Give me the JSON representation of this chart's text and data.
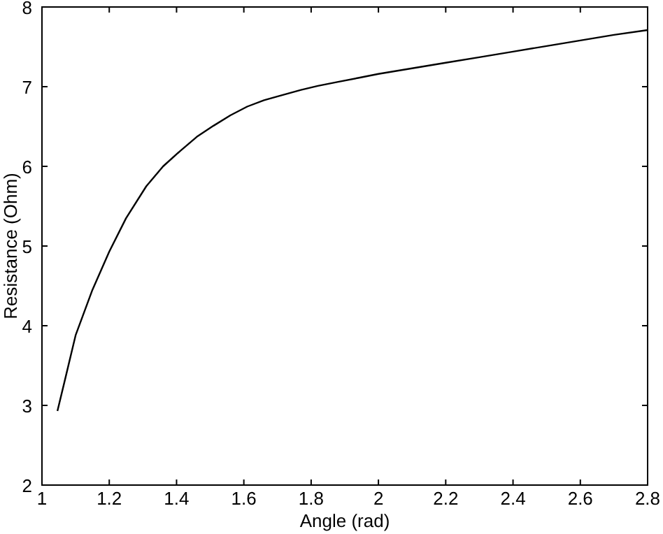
{
  "chart_data": {
    "type": "line",
    "xlabel": "Angle (rad)",
    "ylabel": "Resistance (Ohm)",
    "x": [
      1.046,
      1.07,
      1.1,
      1.15,
      1.2,
      1.25,
      1.31,
      1.36,
      1.41,
      1.46,
      1.51,
      1.56,
      1.61,
      1.66,
      1.71,
      1.77,
      1.82,
      1.88,
      1.94,
      2.0,
      2.1,
      2.2,
      2.3,
      2.4,
      2.5,
      2.6,
      2.7,
      2.8
    ],
    "series": [
      {
        "color": "#000000",
        "values": [
          2.93,
          3.35,
          3.88,
          4.45,
          4.93,
          5.35,
          5.75,
          6.0,
          6.19,
          6.37,
          6.51,
          6.64,
          6.75,
          6.83,
          6.89,
          6.96,
          7.01,
          7.06,
          7.11,
          7.16,
          7.23,
          7.3,
          7.37,
          7.44,
          7.51,
          7.58,
          7.65,
          7.71
        ]
      }
    ],
    "xlim": [
      1,
      2.8
    ],
    "ylim": [
      2,
      8
    ],
    "xticks": [
      1,
      1.2,
      1.4,
      1.6,
      1.8,
      2,
      2.2,
      2.4,
      2.6,
      2.8
    ],
    "yticks": [
      2,
      3,
      4,
      5,
      6,
      7,
      8
    ],
    "grid": false,
    "line_style": "solid",
    "marker": "none"
  }
}
